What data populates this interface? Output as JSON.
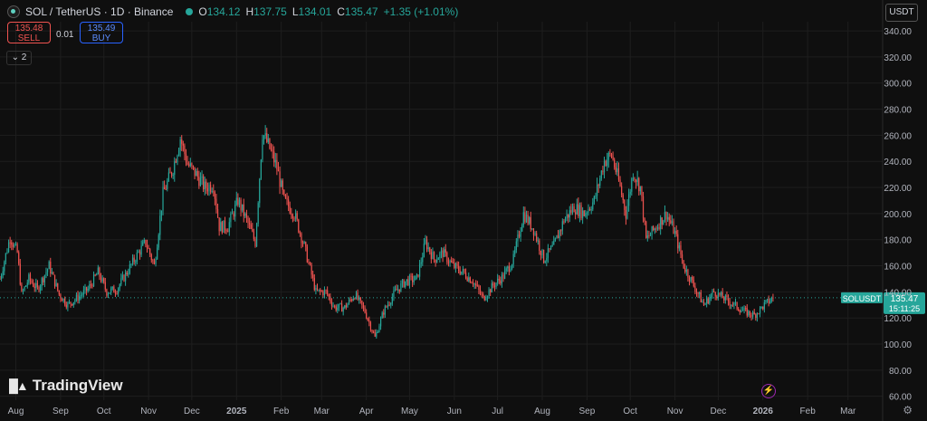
{
  "header": {
    "title": "SOL / TetherUS · 1D · Binance",
    "ohlc": {
      "o_label": "O",
      "o": "134.12",
      "h_label": "H",
      "h": "137.75",
      "l_label": "L",
      "l": "134.01",
      "c_label": "C",
      "c": "135.47",
      "change": "+1.35 (+1.01%)"
    },
    "indicator_count": "2"
  },
  "trade": {
    "sell_price": "135.48",
    "sell_label": "SELL",
    "spread": "0.01",
    "buy_price": "135.49",
    "buy_label": "BUY"
  },
  "currency": "USDT",
  "brand": "TradingView",
  "colors": {
    "up": "#26a69a",
    "down": "#ef5350",
    "background": "#0f0f0f",
    "grid": "#1e1e1e",
    "axis_text": "#b2b5be"
  },
  "icons": [
    "sol-logo-icon",
    "chevron-icon",
    "bolt-icon",
    "gear-icon",
    "tradingview-logo-icon"
  ],
  "chart_data": {
    "type": "candlestick",
    "symbol_tag": "SOLUSDT",
    "last_price": "135.47",
    "countdown": "15:11:25",
    "y_ticks": [
      60,
      80,
      100,
      120,
      140,
      160,
      180,
      200,
      220,
      240,
      260,
      280,
      300,
      320,
      340
    ],
    "y_tick_labels": [
      "60.00",
      "80.00",
      "100.00",
      "120.00",
      "140.00",
      "160.00",
      "180.00",
      "200.00",
      "220.00",
      "240.00",
      "260.00",
      "280.00",
      "300.00",
      "320.00",
      "340.00"
    ],
    "ylim": [
      57,
      347
    ],
    "x_range": [
      "2024-07-21",
      "2026-03-25"
    ],
    "x_ticks": [
      {
        "date": "2024-08-01",
        "label": "Aug",
        "bold": false
      },
      {
        "date": "2024-09-01",
        "label": "Sep",
        "bold": false
      },
      {
        "date": "2024-10-01",
        "label": "Oct",
        "bold": false
      },
      {
        "date": "2024-11-01",
        "label": "Nov",
        "bold": false
      },
      {
        "date": "2024-12-01",
        "label": "Dec",
        "bold": false
      },
      {
        "date": "2025-01-01",
        "label": "2025",
        "bold": true
      },
      {
        "date": "2025-02-01",
        "label": "Feb",
        "bold": false
      },
      {
        "date": "2025-03-01",
        "label": "Mar",
        "bold": false
      },
      {
        "date": "2025-04-01",
        "label": "Apr",
        "bold": false
      },
      {
        "date": "2025-05-01",
        "label": "May",
        "bold": false
      },
      {
        "date": "2025-06-01",
        "label": "Jun",
        "bold": false
      },
      {
        "date": "2025-07-01",
        "label": "Jul",
        "bold": false
      },
      {
        "date": "2025-08-01",
        "label": "Aug",
        "bold": false
      },
      {
        "date": "2025-09-01",
        "label": "Sep",
        "bold": false
      },
      {
        "date": "2025-10-01",
        "label": "Oct",
        "bold": false
      },
      {
        "date": "2025-11-01",
        "label": "Nov",
        "bold": false
      },
      {
        "date": "2025-12-01",
        "label": "Dec",
        "bold": false
      },
      {
        "date": "2026-01-01",
        "label": "2026",
        "bold": true
      },
      {
        "date": "2026-02-01",
        "label": "Feb",
        "bold": false
      },
      {
        "date": "2026-03-01",
        "label": "Mar",
        "bold": false
      }
    ],
    "close_series": [
      [
        "2024-07-21",
        150
      ],
      [
        "2024-07-28",
        182
      ],
      [
        "2024-08-02",
        170
      ],
      [
        "2024-08-05",
        138
      ],
      [
        "2024-08-10",
        150
      ],
      [
        "2024-08-16",
        142
      ],
      [
        "2024-08-24",
        160
      ],
      [
        "2024-08-31",
        138
      ],
      [
        "2024-09-06",
        130
      ],
      [
        "2024-09-12",
        135
      ],
      [
        "2024-09-20",
        142
      ],
      [
        "2024-09-27",
        155
      ],
      [
        "2024-10-03",
        140
      ],
      [
        "2024-10-10",
        142
      ],
      [
        "2024-10-17",
        155
      ],
      [
        "2024-10-25",
        170
      ],
      [
        "2024-10-30",
        178
      ],
      [
        "2024-11-05",
        160
      ],
      [
        "2024-11-11",
        215
      ],
      [
        "2024-11-18",
        235
      ],
      [
        "2024-11-23",
        258
      ],
      [
        "2024-11-28",
        238
      ],
      [
        "2024-12-04",
        230
      ],
      [
        "2024-12-10",
        220
      ],
      [
        "2024-12-16",
        222
      ],
      [
        "2024-12-20",
        190
      ],
      [
        "2024-12-26",
        190
      ],
      [
        "2025-01-02",
        210
      ],
      [
        "2025-01-08",
        195
      ],
      [
        "2025-01-14",
        178
      ],
      [
        "2025-01-19",
        262
      ],
      [
        "2025-01-24",
        250
      ],
      [
        "2025-01-29",
        235
      ],
      [
        "2025-02-03",
        210
      ],
      [
        "2025-02-10",
        200
      ],
      [
        "2025-02-17",
        175
      ],
      [
        "2025-02-25",
        140
      ],
      [
        "2025-03-04",
        140
      ],
      [
        "2025-03-10",
        128
      ],
      [
        "2025-03-17",
        128
      ],
      [
        "2025-03-24",
        138
      ],
      [
        "2025-03-31",
        125
      ],
      [
        "2025-04-07",
        105
      ],
      [
        "2025-04-13",
        125
      ],
      [
        "2025-04-21",
        140
      ],
      [
        "2025-04-28",
        148
      ],
      [
        "2025-05-06",
        150
      ],
      [
        "2025-05-12",
        178
      ],
      [
        "2025-05-18",
        165
      ],
      [
        "2025-05-24",
        170
      ],
      [
        "2025-05-31",
        160
      ],
      [
        "2025-06-07",
        155
      ],
      [
        "2025-06-14",
        148
      ],
      [
        "2025-06-21",
        135
      ],
      [
        "2025-06-28",
        145
      ],
      [
        "2025-07-05",
        152
      ],
      [
        "2025-07-12",
        165
      ],
      [
        "2025-07-19",
        200
      ],
      [
        "2025-07-26",
        188
      ],
      [
        "2025-08-02",
        165
      ],
      [
        "2025-08-09",
        175
      ],
      [
        "2025-08-16",
        195
      ],
      [
        "2025-08-23",
        205
      ],
      [
        "2025-08-30",
        200
      ],
      [
        "2025-09-06",
        210
      ],
      [
        "2025-09-13",
        240
      ],
      [
        "2025-09-18",
        245
      ],
      [
        "2025-09-23",
        225
      ],
      [
        "2025-09-28",
        200
      ],
      [
        "2025-10-03",
        232
      ],
      [
        "2025-10-08",
        220
      ],
      [
        "2025-10-12",
        180
      ],
      [
        "2025-10-19",
        190
      ],
      [
        "2025-10-26",
        200
      ],
      [
        "2025-11-01",
        185
      ],
      [
        "2025-11-07",
        160
      ],
      [
        "2025-11-14",
        145
      ],
      [
        "2025-11-21",
        130
      ],
      [
        "2025-11-28",
        140
      ],
      [
        "2025-12-05",
        135
      ],
      [
        "2025-12-12",
        130
      ],
      [
        "2025-12-19",
        125
      ],
      [
        "2025-12-26",
        122
      ],
      [
        "2026-01-02",
        130
      ],
      [
        "2026-01-08",
        135.47
      ]
    ]
  }
}
